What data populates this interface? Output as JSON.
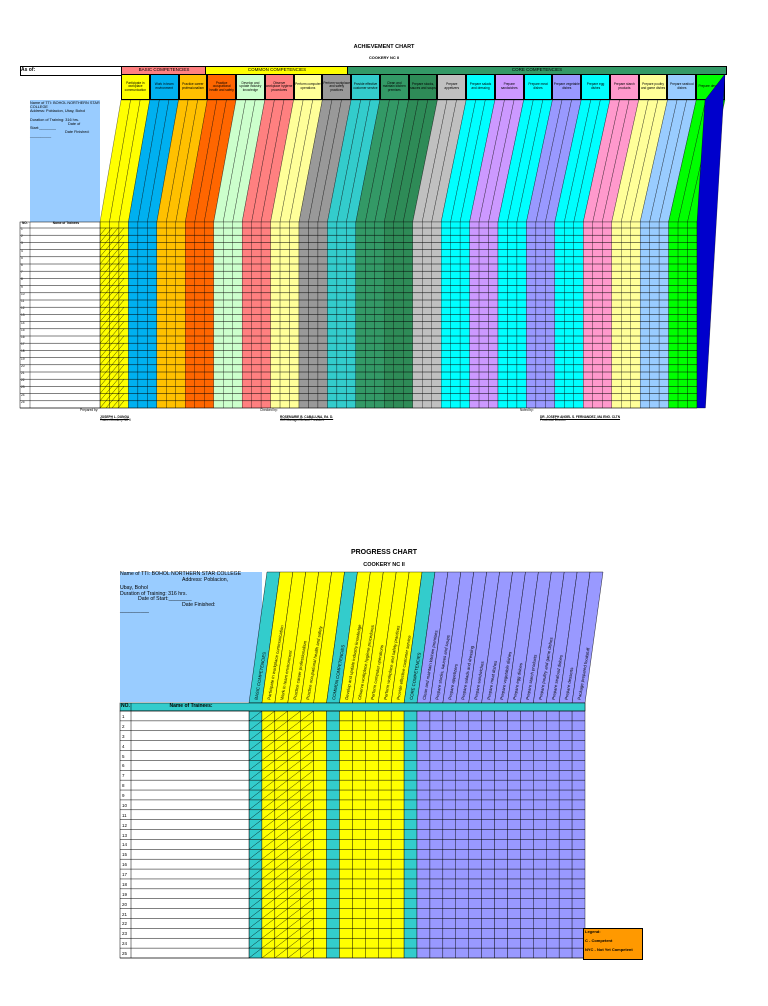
{
  "achievement": {
    "title": "ACHIEVEMENT CHART",
    "subtitle": "COOKERY NC II",
    "as_of": "As of:",
    "groups": {
      "basic": "BASIC COMPETENCIES",
      "common": "COMMON COMPETENCIES",
      "core": "CORE COMPETENCIES"
    },
    "header_cells": [
      {
        "label": "Participate in workplace communication",
        "color": "#ffff00"
      },
      {
        "label": "Work in team environment",
        "color": "#00b0f0"
      },
      {
        "label": "Practice career professionalism",
        "color": "#ffc000"
      },
      {
        "label": "Practice occupational health and safety",
        "color": "#ff6600"
      },
      {
        "label": "Develop and update industry knowledge",
        "color": "#ccffcc"
      },
      {
        "label": "Observe workplace hygiene procedures",
        "color": "#ff8080"
      },
      {
        "label": "Perform computer operations",
        "color": "#ffff99"
      },
      {
        "label": "Perform workplace and safety practices",
        "color": "#999999"
      },
      {
        "label": "Provide effective customer service",
        "color": "#33cccc"
      },
      {
        "label": "Clean and maintain kitchen premises",
        "color": "#339966"
      },
      {
        "label": "Prepare stocks, sauces and soups",
        "color": "#2e8b57"
      },
      {
        "label": "Prepare appetizers",
        "color": "#c0c0c0"
      },
      {
        "label": "Prepare salads and dressing",
        "color": "#00ffff"
      },
      {
        "label": "Prepare sandwiches",
        "color": "#cc99ff"
      },
      {
        "label": "Prepare meat dishes",
        "color": "#00ffff"
      },
      {
        "label": "Prepare vegetable dishes",
        "color": "#9999ff"
      },
      {
        "label": "Prepare egg dishes",
        "color": "#00ffff"
      },
      {
        "label": "Prepare starch products",
        "color": "#ff99cc"
      },
      {
        "label": "Prepare poultry and game dishes",
        "color": "#ffff99"
      },
      {
        "label": "Prepare seafood dishes",
        "color": "#99ccff"
      },
      {
        "label": "Prepare desserts",
        "color": "#00ff00"
      }
    ],
    "info": {
      "name": "Name of TTI: BOHOL NORTHERN STAR COLLEGE",
      "address": "Address: Poblacion, Ubay, Bohol",
      "duration": "Duration of Training: 316 hrs.",
      "date_of": "Date of",
      "start": "Start:________",
      "date_finished": "Date Finished:",
      "blank": "__________"
    },
    "table_head": {
      "no": "NO.",
      "name": "Name of Trainees"
    },
    "rows": [
      "1",
      "2",
      "3",
      "4",
      "5",
      "6",
      "7",
      "8",
      "9",
      "10",
      "11",
      "12",
      "13",
      "14",
      "15",
      "16",
      "17",
      "18",
      "19",
      "20",
      "21",
      "22",
      "23",
      "24",
      "25"
    ],
    "signatures": [
      {
        "prepared": "Prepared by:",
        "name": "JOSEPH L. DUNGA",
        "role": "Trainer/Cookery NC II"
      },
      {
        "prepared": "Checked by:",
        "name": "ROSEMARIE B. CABALUNA, Ed. D.",
        "role": "OIC Manager/School President"
      },
      {
        "prepared": "Noted by:",
        "name": "DR. JOSEPH ANGEL S. FERNANDEZ, MA ENG. CLTN",
        "role": "Provincial Director"
      }
    ]
  },
  "progress": {
    "title": "PROGRESS CHART",
    "subtitle": "COOKERY NC II",
    "info": {
      "name": "Name of TTI: BOHOL NORTHERN STAR COLLEGE",
      "address": "Address: Poblacion,",
      "address2": "Ubay, Bohol",
      "duration": "Duration of Training: 316 hrs.",
      "date_of_start": "Date of Start:________",
      "date_finished": "Date Finished:",
      "blank": "__________"
    },
    "headers": [
      {
        "label": "BASIC COMPETENCIES",
        "color": "#33cccc"
      },
      {
        "label": "Participate in workplace communication",
        "color": "#ffff00"
      },
      {
        "label": "Work in team environment",
        "color": "#ffff00"
      },
      {
        "label": "Practice career professionalism",
        "color": "#ffff00"
      },
      {
        "label": "Practice occupational health and safety",
        "color": "#ffff00"
      },
      {
        "label": "",
        "color": "#ffff00"
      },
      {
        "label": "COMMON COMPETENCIES",
        "color": "#33cccc"
      },
      {
        "label": "Develop and update industry knowledge",
        "color": "#ffff00"
      },
      {
        "label": "Observe workplace hygiene procedures",
        "color": "#ffff00"
      },
      {
        "label": "Perform computer operations",
        "color": "#ffff00"
      },
      {
        "label": "Perform workplace and safety practices",
        "color": "#ffff00"
      },
      {
        "label": "Provide effective customer service",
        "color": "#ffff00"
      },
      {
        "label": "CORE COMPETENCIES",
        "color": "#33cccc"
      },
      {
        "label": "Clean and maintain kitchen premises",
        "color": "#9999ff"
      },
      {
        "label": "Prepare stocks, sauces and soups",
        "color": "#9999ff"
      },
      {
        "label": "Prepare appetizers",
        "color": "#9999ff"
      },
      {
        "label": "Prepare salads and dressing",
        "color": "#9999ff"
      },
      {
        "label": "Prepare sandwiches",
        "color": "#9999ff"
      },
      {
        "label": "Prepare meat dishes",
        "color": "#9999ff"
      },
      {
        "label": "Prepare vegetable dishes",
        "color": "#9999ff"
      },
      {
        "label": "Prepare egg dishes",
        "color": "#9999ff"
      },
      {
        "label": "Prepare starch products",
        "color": "#9999ff"
      },
      {
        "label": "Prepare poultry and game dishes",
        "color": "#9999ff"
      },
      {
        "label": "Prepare seafood dishes",
        "color": "#9999ff"
      },
      {
        "label": "Prepare desserts",
        "color": "#9999ff"
      },
      {
        "label": "Package prepared foodstuff",
        "color": "#9999ff"
      }
    ],
    "table_head": {
      "no": "NO.",
      "name": "Name of Trainees:"
    },
    "rows": [
      "1",
      "2",
      "3",
      "4",
      "5",
      "6",
      "7",
      "8",
      "9",
      "10",
      "11",
      "12",
      "13",
      "14",
      "15",
      "16",
      "17",
      "18",
      "19",
      "20",
      "21",
      "22",
      "23",
      "24",
      "25"
    ],
    "legend": {
      "title": "Legend:",
      "c": "C - Competent",
      "nyc": "NYC - Not Yet Competent",
      "color": "#ff9900"
    }
  }
}
